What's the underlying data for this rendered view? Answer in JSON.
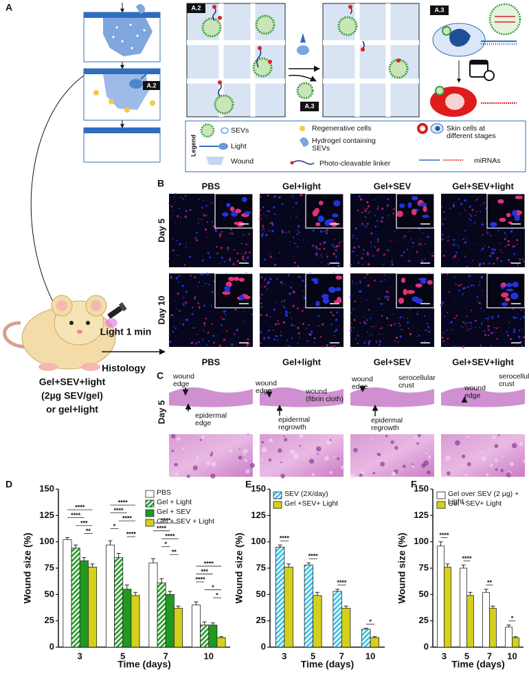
{
  "panel_labels": [
    "A",
    "B",
    "C",
    "D",
    "E",
    "F"
  ],
  "diagram": {
    "a2_label": "A.2",
    "a3_label": "A.3",
    "legend_title": "Legend",
    "legend_items": [
      {
        "lines": [
          "SEVs"
        ]
      },
      {
        "lines": [
          "Light"
        ]
      },
      {
        "lines": [
          "Wound"
        ]
      },
      {
        "lines": [
          "Regenerative cells"
        ]
      },
      {
        "lines": [
          "Hydrogel containing",
          "SEVs"
        ]
      },
      {
        "lines": [
          "Photo-cleavable linker"
        ]
      },
      {
        "lines": [
          "Skin cells at",
          "different stages"
        ]
      },
      {
        "lines": [
          "miRNAs"
        ]
      }
    ]
  },
  "mouse": {
    "light_label": "Light 1 min",
    "histology_label": "Histology",
    "caption_lines": [
      "Gel+SEV+light",
      "(2µg SEV/gel)",
      "or gel+light"
    ]
  },
  "microscopy": {
    "columns": [
      "PBS",
      "Gel+light",
      "Gel+SEV",
      "Gel+SEV+light"
    ],
    "rows": [
      "Day 5",
      "Day 10"
    ]
  },
  "histology": {
    "columns": [
      "PBS",
      "Gel+light",
      "Gel+SEV",
      "Gel+SEV+light"
    ],
    "row": "Day 5",
    "annotations": [
      [
        {
          "lines": [
            "wound",
            "edge"
          ]
        },
        {
          "lines": [
            "epidermal",
            "edge"
          ]
        }
      ],
      [
        {
          "lines": [
            "wound",
            "edge"
          ]
        },
        {
          "lines": [
            "wound",
            "(fibrin cloth)"
          ]
        },
        {
          "lines": [
            "epidermal",
            "regrowth"
          ]
        }
      ],
      [
        {
          "lines": [
            "wound",
            "edge"
          ]
        },
        {
          "lines": [
            "serocellular",
            "crust"
          ]
        },
        {
          "lines": [
            "epidermal",
            "regrowth"
          ]
        }
      ],
      [
        {
          "lines": [
            "wound",
            "edge"
          ]
        },
        {
          "lines": [
            "serocellular",
            "crust"
          ]
        }
      ]
    ]
  },
  "chart_data": [
    {
      "type": "bar",
      "xlabel": "Time (days)",
      "ylabel": "Wound size (%)",
      "categories": [
        "3",
        "5",
        "7",
        "10"
      ],
      "ylim": [
        0,
        150
      ],
      "yticks": [
        0,
        25,
        50,
        75,
        100,
        125,
        150
      ],
      "series": [
        {
          "name": "PBS",
          "color": "#ffffff",
          "values": [
            102,
            97,
            80,
            40
          ],
          "errors": [
            2,
            4,
            4,
            3
          ]
        },
        {
          "name": "Gel + Light",
          "color": "#2e9e2e",
          "hatch": true,
          "values": [
            94,
            85,
            61,
            21
          ],
          "errors": [
            3,
            4,
            4,
            3
          ]
        },
        {
          "name": "Gel + SEV",
          "color": "#1f9a1f",
          "values": [
            82,
            55,
            50,
            21
          ],
          "errors": [
            3,
            4,
            3,
            2
          ]
        },
        {
          "name": "Gel + SEV + Light",
          "color": "#d4d01c",
          "values": [
            76,
            49,
            37,
            9
          ],
          "errors": [
            3,
            3,
            2,
            1
          ]
        }
      ],
      "significance": [
        {
          "category": 0,
          "between": [
            2,
            3
          ],
          "label": "**"
        },
        {
          "category": 0,
          "between": [
            1,
            3
          ],
          "label": "***"
        },
        {
          "category": 0,
          "between": [
            0,
            2
          ],
          "label": "****"
        },
        {
          "category": 0,
          "between": [
            0,
            3
          ],
          "label": "****"
        },
        {
          "category": 1,
          "between": [
            2,
            3
          ],
          "label": "****"
        },
        {
          "category": 1,
          "between": [
            0,
            1
          ],
          "label": "*"
        },
        {
          "category": 1,
          "between": [
            1,
            3
          ],
          "label": "****"
        },
        {
          "category": 1,
          "between": [
            0,
            2
          ],
          "label": "****"
        },
        {
          "category": 1,
          "between": [
            0,
            3
          ],
          "label": "****"
        },
        {
          "category": 2,
          "between": [
            2,
            3
          ],
          "label": "**"
        },
        {
          "category": 2,
          "between": [
            1,
            2
          ],
          "label": "*"
        },
        {
          "category": 2,
          "between": [
            1,
            3
          ],
          "label": "****"
        },
        {
          "category": 2,
          "between": [
            0,
            2
          ],
          "label": "****"
        },
        {
          "category": 2,
          "between": [
            0,
            3
          ],
          "label": "****"
        },
        {
          "category": 3,
          "between": [
            2,
            3
          ],
          "label": "*"
        },
        {
          "category": 3,
          "between": [
            1,
            3
          ],
          "label": "*"
        },
        {
          "category": 3,
          "between": [
            0,
            1
          ],
          "label": "****"
        },
        {
          "category": 3,
          "between": [
            0,
            2
          ],
          "label": "***"
        },
        {
          "category": 3,
          "between": [
            0,
            3
          ],
          "label": "****"
        }
      ]
    },
    {
      "type": "bar",
      "xlabel": "Time (days)",
      "ylabel": "Wound size (%)",
      "categories": [
        "3",
        "5",
        "7",
        "10"
      ],
      "ylim": [
        0,
        150
      ],
      "yticks": [
        0,
        25,
        50,
        75,
        100,
        125,
        150
      ],
      "series": [
        {
          "name": "SEV (2X/day)",
          "color": "#3ec3e6",
          "hatch": true,
          "values": [
            95,
            78,
            53,
            17
          ],
          "errors": [
            2,
            2,
            2,
            1
          ]
        },
        {
          "name": "Gel +SEV+ Light",
          "color": "#d4d01c",
          "values": [
            76,
            49,
            37,
            9
          ],
          "errors": [
            3,
            3,
            2,
            1
          ]
        }
      ],
      "significance": [
        {
          "category": 0,
          "between": [
            0,
            1
          ],
          "label": "****"
        },
        {
          "category": 1,
          "between": [
            0,
            1
          ],
          "label": "****"
        },
        {
          "category": 2,
          "between": [
            0,
            1
          ],
          "label": "****"
        },
        {
          "category": 3,
          "between": [
            0,
            1
          ],
          "label": "*"
        }
      ]
    },
    {
      "type": "bar",
      "xlabel": "Time (days)",
      "ylabel": "Wound size (%)",
      "categories": [
        "3",
        "5",
        "7",
        "10"
      ],
      "ylim": [
        0,
        150
      ],
      "yticks": [
        0,
        25,
        50,
        75,
        100,
        125,
        150
      ],
      "series": [
        {
          "name": "Gel over SEV (2 µg) + Light",
          "color": "#ffffff",
          "values": [
            96,
            75,
            52,
            19
          ],
          "errors": [
            4,
            3,
            3,
            2
          ]
        },
        {
          "name": "Gel +SEV+ Light",
          "color": "#d4d01c",
          "values": [
            76,
            49,
            37,
            9
          ],
          "errors": [
            3,
            3,
            2,
            1
          ]
        }
      ],
      "significance": [
        {
          "category": 0,
          "between": [
            0,
            1
          ],
          "label": "****"
        },
        {
          "category": 1,
          "between": [
            0,
            1
          ],
          "label": "****"
        },
        {
          "category": 2,
          "between": [
            0,
            1
          ],
          "label": "**"
        },
        {
          "category": 3,
          "between": [
            0,
            1
          ],
          "label": "*"
        }
      ]
    }
  ]
}
